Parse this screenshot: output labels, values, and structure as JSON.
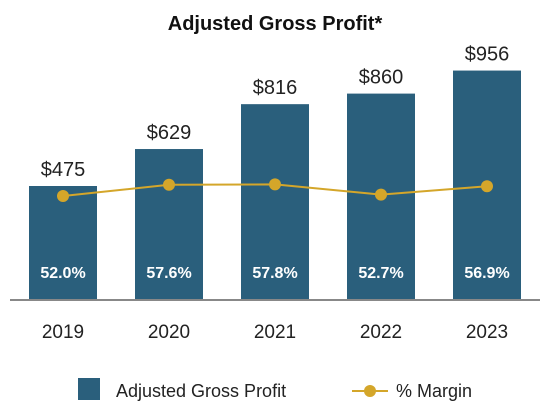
{
  "chart_data": {
    "type": "bar",
    "title": "Adjusted Gross Profit*",
    "categories": [
      "2019",
      "2020",
      "2021",
      "2022",
      "2023"
    ],
    "series": [
      {
        "name": "Adjusted Gross Profit",
        "type": "bar",
        "values": [
          475,
          629,
          816,
          860,
          956
        ],
        "labels": [
          "$475",
          "$629",
          "$816",
          "$860",
          "$956"
        ],
        "color": "#2a5f7c"
      },
      {
        "name": "% Margin",
        "type": "line",
        "values": [
          52.0,
          57.6,
          57.8,
          52.7,
          56.9
        ],
        "labels": [
          "52.0%",
          "57.6%",
          "57.8%",
          "52.7%",
          "56.9%"
        ],
        "color": "#d4a62a"
      }
    ],
    "ylim": [
      0,
      1000
    ],
    "margin_ylim": [
      0,
      120
    ],
    "grid": false,
    "legend_position": "bottom"
  }
}
